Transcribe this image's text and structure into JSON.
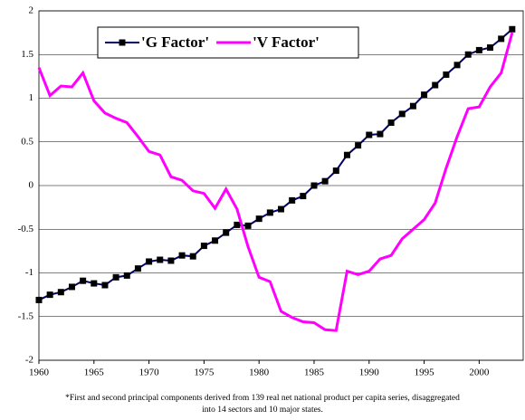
{
  "chart_data": {
    "type": "line",
    "x": [
      1960,
      1961,
      1962,
      1963,
      1964,
      1965,
      1966,
      1967,
      1968,
      1969,
      1970,
      1971,
      1972,
      1973,
      1974,
      1975,
      1976,
      1977,
      1978,
      1979,
      1980,
      1981,
      1982,
      1983,
      1984,
      1985,
      1986,
      1987,
      1988,
      1989,
      1990,
      1991,
      1992,
      1993,
      1994,
      1995,
      1996,
      1997,
      1998,
      1999,
      2000,
      2001,
      2002,
      2003
    ],
    "series": [
      {
        "name": "'G Factor'",
        "color": "#000066",
        "marker": "square",
        "values": [
          -1.31,
          -1.25,
          -1.22,
          -1.16,
          -1.09,
          -1.12,
          -1.14,
          -1.05,
          -1.03,
          -0.95,
          -0.87,
          -0.85,
          -0.86,
          -0.8,
          -0.81,
          -0.69,
          -0.63,
          -0.54,
          -0.45,
          -0.46,
          -0.38,
          -0.31,
          -0.27,
          -0.17,
          -0.12,
          0.0,
          0.05,
          0.17,
          0.35,
          0.46,
          0.58,
          0.59,
          0.72,
          0.82,
          0.91,
          1.04,
          1.15,
          1.27,
          1.38,
          1.5,
          1.55,
          1.58,
          1.68,
          1.79
        ]
      },
      {
        "name": "'V Factor'",
        "color": "#ff00ff",
        "values": [
          1.35,
          1.03,
          1.14,
          1.13,
          1.29,
          0.97,
          0.83,
          0.77,
          0.72,
          0.56,
          0.39,
          0.35,
          0.1,
          0.06,
          -0.06,
          -0.09,
          -0.26,
          -0.04,
          -0.27,
          -0.7,
          -1.05,
          -1.1,
          -1.44,
          -1.51,
          -1.56,
          -1.57,
          -1.65,
          -1.66,
          -0.98,
          -1.02,
          -0.98,
          -0.84,
          -0.8,
          -0.61,
          -0.5,
          -0.39,
          -0.2,
          0.2,
          0.56,
          0.88,
          0.9,
          1.13,
          1.29,
          1.75
        ]
      }
    ],
    "xlim": [
      1960,
      2004
    ],
    "xticks": [
      1960,
      1965,
      1970,
      1975,
      1980,
      1985,
      1990,
      1995,
      2000
    ],
    "ylim": [
      -2,
      2
    ],
    "yticks": [
      -2,
      -1.5,
      -1,
      -0.5,
      0,
      0.5,
      1,
      1.5,
      2
    ],
    "grid": true,
    "legend": "top-left",
    "footnote": [
      "*First and second principal components derived from 139 real net national product per capita series, disaggregated",
      "into 14 sectors and 10 major states."
    ]
  }
}
